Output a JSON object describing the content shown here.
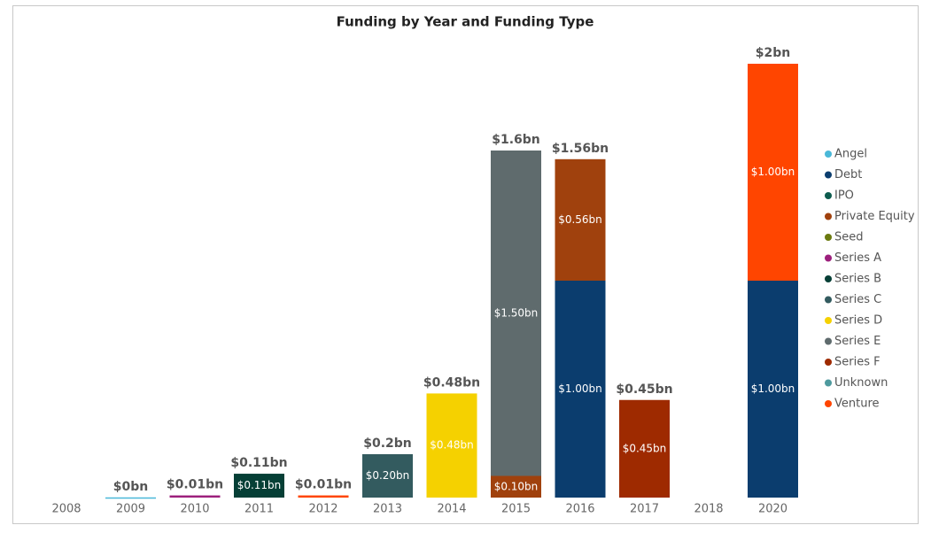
{
  "chart_data": {
    "type": "stacked_bar",
    "title": "Funding by Year and Funding Type",
    "categories": [
      "2008",
      "2009",
      "2010",
      "2011",
      "2012",
      "2013",
      "2014",
      "2015",
      "2016",
      "2017",
      "2018",
      "2020"
    ],
    "ylim": [
      0,
      2
    ],
    "series": [
      {
        "name": "Angel",
        "color": "#4ab8d8",
        "values": [
          null,
          0.001,
          null,
          null,
          null,
          null,
          null,
          null,
          null,
          null,
          null,
          null
        ],
        "value_labels": [
          null,
          null,
          null,
          null,
          null,
          null,
          null,
          null,
          null,
          null,
          null,
          null
        ]
      },
      {
        "name": "Debt",
        "color": "#0b3d6e",
        "values": [
          null,
          null,
          null,
          null,
          null,
          null,
          null,
          null,
          1.0,
          null,
          null,
          1.0
        ],
        "value_labels": [
          null,
          null,
          null,
          null,
          null,
          null,
          null,
          null,
          "$1.00bn",
          null,
          null,
          "$1.00bn"
        ]
      },
      {
        "name": "IPO",
        "color": "#0d5c4e",
        "values": [
          null,
          null,
          null,
          null,
          null,
          null,
          null,
          null,
          null,
          null,
          null,
          null
        ],
        "value_labels": [
          null,
          null,
          null,
          null,
          null,
          null,
          null,
          null,
          null,
          null,
          null,
          null
        ]
      },
      {
        "name": "Private Equity",
        "color": "#a0410d",
        "values": [
          null,
          null,
          null,
          null,
          null,
          null,
          null,
          0.1,
          0.56,
          null,
          null,
          null
        ],
        "value_labels": [
          null,
          null,
          null,
          null,
          null,
          null,
          null,
          "$0.10bn",
          "$0.56bn",
          null,
          null,
          null
        ]
      },
      {
        "name": "Seed",
        "color": "#6b7a0f",
        "values": [
          null,
          null,
          null,
          null,
          null,
          null,
          null,
          null,
          null,
          null,
          null,
          null
        ],
        "value_labels": [
          null,
          null,
          null,
          null,
          null,
          null,
          null,
          null,
          null,
          null,
          null,
          null
        ]
      },
      {
        "name": "Series A",
        "color": "#9c1f7c",
        "values": [
          null,
          null,
          0.01,
          null,
          null,
          null,
          null,
          null,
          null,
          null,
          null,
          null
        ],
        "value_labels": [
          null,
          null,
          null,
          null,
          null,
          null,
          null,
          null,
          null,
          null,
          null,
          null
        ]
      },
      {
        "name": "Series B",
        "color": "#063f36",
        "values": [
          null,
          null,
          null,
          0.11,
          null,
          null,
          null,
          null,
          null,
          null,
          null,
          null
        ],
        "value_labels": [
          null,
          null,
          null,
          "$0.11bn",
          null,
          null,
          null,
          null,
          null,
          null,
          null,
          null
        ]
      },
      {
        "name": "Series C",
        "color": "#335b5f",
        "values": [
          null,
          null,
          null,
          null,
          null,
          0.2,
          null,
          null,
          null,
          null,
          null,
          null
        ],
        "value_labels": [
          null,
          null,
          null,
          null,
          null,
          "$0.20bn",
          null,
          null,
          null,
          null,
          null,
          null
        ]
      },
      {
        "name": "Series D",
        "color": "#f5d100",
        "values": [
          null,
          null,
          null,
          null,
          null,
          null,
          0.48,
          null,
          null,
          null,
          null,
          null
        ],
        "value_labels": [
          null,
          null,
          null,
          null,
          null,
          null,
          "$0.48bn",
          null,
          null,
          null,
          null,
          null
        ]
      },
      {
        "name": "Series E",
        "color": "#5f6b6d",
        "values": [
          null,
          null,
          null,
          null,
          null,
          null,
          null,
          1.5,
          null,
          null,
          null,
          null
        ],
        "value_labels": [
          null,
          null,
          null,
          null,
          null,
          null,
          null,
          "$1.50bn",
          null,
          null,
          null,
          null
        ]
      },
      {
        "name": "Series F",
        "color": "#9e2a00",
        "values": [
          null,
          null,
          null,
          null,
          null,
          null,
          null,
          null,
          null,
          0.45,
          null,
          null
        ],
        "value_labels": [
          null,
          null,
          null,
          null,
          null,
          null,
          null,
          null,
          null,
          "$0.45bn",
          null,
          null
        ]
      },
      {
        "name": "Unknown",
        "color": "#4e9a9e",
        "values": [
          null,
          null,
          null,
          null,
          null,
          null,
          null,
          null,
          null,
          null,
          null,
          null
        ],
        "value_labels": [
          null,
          null,
          null,
          null,
          null,
          null,
          null,
          null,
          null,
          null,
          null,
          null
        ]
      },
      {
        "name": "Venture",
        "color": "#ff4500",
        "values": [
          null,
          null,
          null,
          null,
          0.01,
          null,
          null,
          null,
          null,
          null,
          null,
          1.0
        ],
        "value_labels": [
          null,
          null,
          null,
          null,
          null,
          null,
          null,
          null,
          null,
          null,
          null,
          "$1.00bn"
        ]
      }
    ],
    "totals": [
      null,
      0.001,
      0.01,
      0.11,
      0.01,
      0.2,
      0.48,
      1.6,
      1.56,
      0.45,
      null,
      2
    ],
    "total_labels": [
      null,
      "$0bn",
      "$0.01bn",
      "$0.11bn",
      "$0.01bn",
      "$0.2bn",
      "$0.48bn",
      "$1.6bn",
      "$1.56bn",
      "$0.45bn",
      null,
      "$2bn"
    ],
    "legend": "right"
  }
}
